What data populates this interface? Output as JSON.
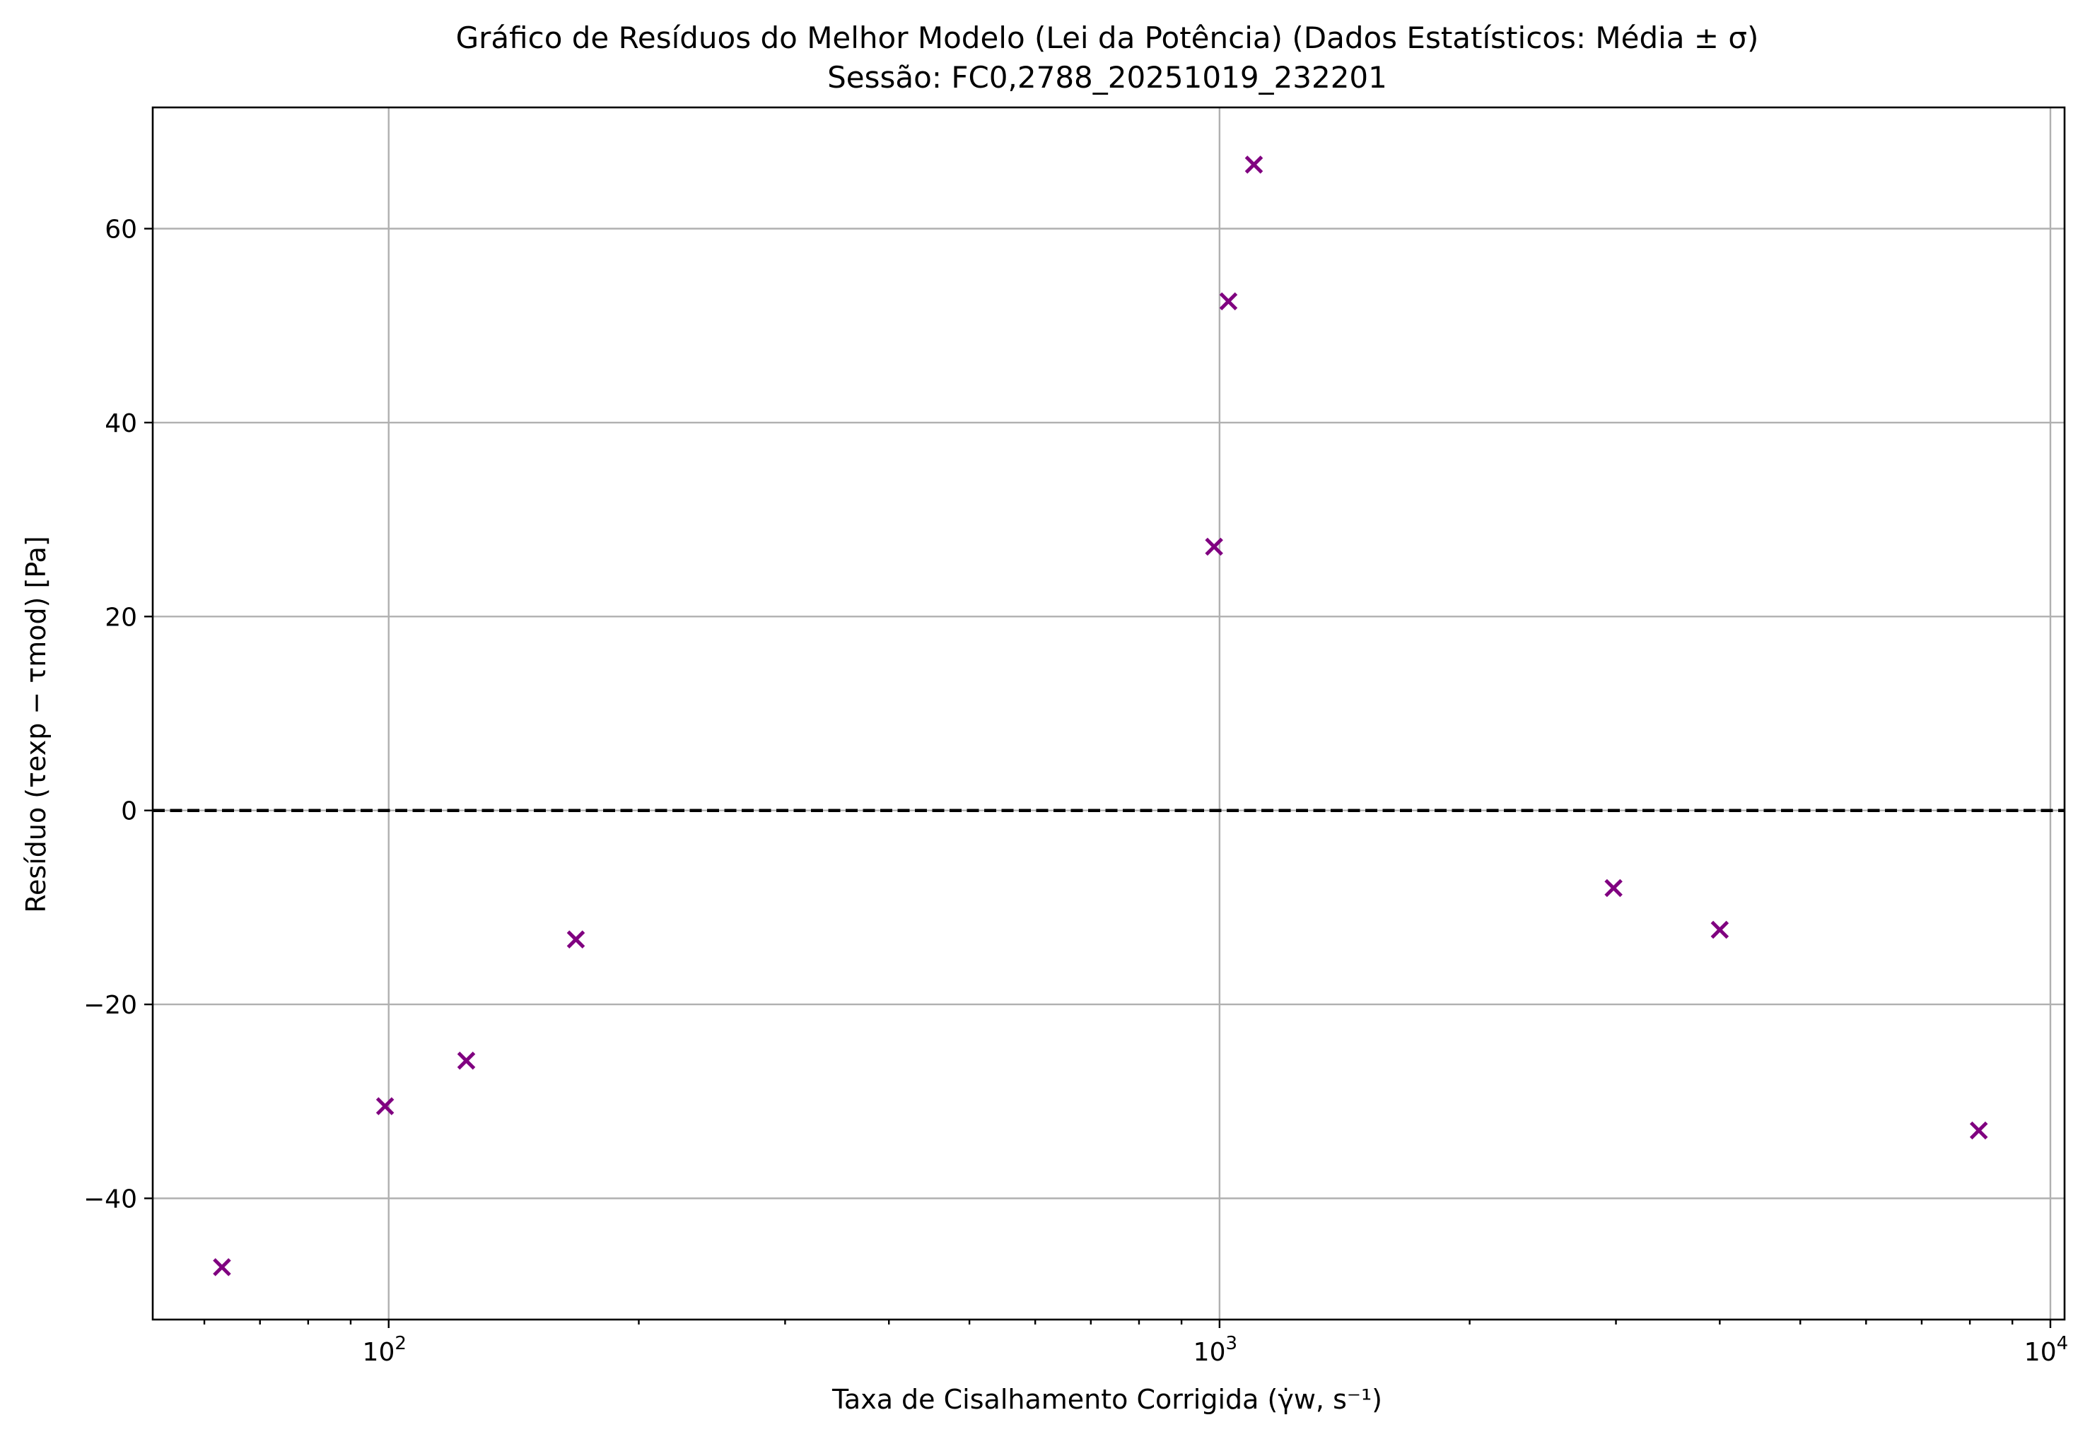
{
  "chart_data": {
    "type": "scatter",
    "title": "Gráfico de Resíduos do Melhor Modelo (Lei da Potência) (Dados Estatísticos: Média ± σ)",
    "subtitle": "Sessão: FC0,2788_20251019_232201",
    "xlabel": "Taxa de Cisalhamento Corrigida (γ̇w, s⁻¹)",
    "ylabel": "Resíduo (τexp − τmod) [Pa]",
    "x_scale": "log",
    "xlim": [
      52,
      10400
    ],
    "ylim": [
      -52.5,
      72.5
    ],
    "grid": true,
    "marker": "x",
    "marker_color": "#800080",
    "zero_line": {
      "y": 0,
      "style": "dashed",
      "color": "#000000"
    },
    "x_ticks": [
      {
        "value": 100,
        "base": "10",
        "exp": "2"
      },
      {
        "value": 1000,
        "base": "10",
        "exp": "3"
      },
      {
        "value": 10000,
        "base": "10",
        "exp": "4"
      }
    ],
    "y_ticks": [
      {
        "value": -40,
        "label": "−40"
      },
      {
        "value": -20,
        "label": "−20"
      },
      {
        "value": 0,
        "label": "0"
      },
      {
        "value": 20,
        "label": "20"
      },
      {
        "value": 40,
        "label": "40"
      },
      {
        "value": 60,
        "label": "60"
      }
    ],
    "series": [
      {
        "points": [
          {
            "x": 63,
            "y": -47.1
          },
          {
            "x": 99,
            "y": -30.5
          },
          {
            "x": 124,
            "y": -25.8
          },
          {
            "x": 168,
            "y": -13.3
          },
          {
            "x": 985,
            "y": 27.2
          },
          {
            "x": 1025,
            "y": 52.5
          },
          {
            "x": 1100,
            "y": 66.6
          },
          {
            "x": 2980,
            "y": -8.0
          },
          {
            "x": 4000,
            "y": -12.3
          },
          {
            "x": 8200,
            "y": -33.0
          }
        ]
      }
    ]
  }
}
